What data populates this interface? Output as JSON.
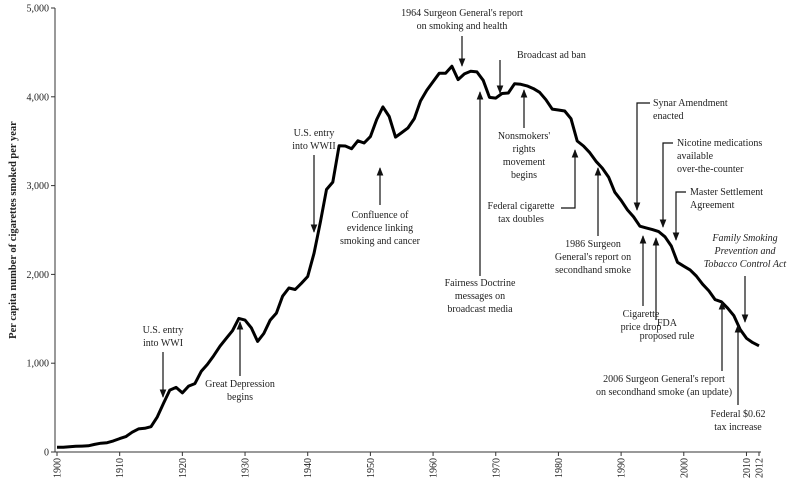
{
  "chart_data": {
    "type": "line",
    "y_label": "Per capita number of cigarettes smoked per year",
    "x": [
      1900,
      1901,
      1902,
      1903,
      1904,
      1905,
      1906,
      1907,
      1908,
      1909,
      1910,
      1911,
      1912,
      1913,
      1914,
      1915,
      1916,
      1917,
      1918,
      1919,
      1920,
      1921,
      1922,
      1923,
      1924,
      1925,
      1926,
      1927,
      1928,
      1929,
      1930,
      1931,
      1932,
      1933,
      1934,
      1935,
      1936,
      1937,
      1938,
      1939,
      1940,
      1941,
      1942,
      1943,
      1944,
      1945,
      1946,
      1947,
      1948,
      1949,
      1950,
      1951,
      1952,
      1953,
      1954,
      1955,
      1956,
      1957,
      1958,
      1959,
      1960,
      1961,
      1962,
      1963,
      1964,
      1965,
      1966,
      1967,
      1968,
      1969,
      1970,
      1971,
      1972,
      1973,
      1974,
      1975,
      1976,
      1977,
      1978,
      1979,
      1980,
      1981,
      1982,
      1983,
      1984,
      1985,
      1986,
      1987,
      1988,
      1989,
      1990,
      1991,
      1992,
      1993,
      1994,
      1995,
      1996,
      1997,
      1998,
      1999,
      2000,
      2001,
      2002,
      2003,
      2004,
      2005,
      2006,
      2007,
      2008,
      2009,
      2010,
      2011,
      2012
    ],
    "values": [
      54,
      53,
      60,
      64,
      66,
      70,
      86,
      99,
      105,
      125,
      151,
      173,
      223,
      260,
      267,
      285,
      395,
      551,
      697,
      727,
      665,
      742,
      770,
      908,
      986,
      1085,
      1191,
      1279,
      1366,
      1504,
      1485,
      1399,
      1245,
      1334,
      1483,
      1564,
      1754,
      1847,
      1830,
      1900,
      1976,
      2236,
      2585,
      2956,
      3039,
      3449,
      3446,
      3416,
      3505,
      3480,
      3552,
      3744,
      3886,
      3778,
      3546,
      3597,
      3650,
      3755,
      3953,
      4073,
      4171,
      4266,
      4266,
      4345,
      4194,
      4258,
      4287,
      4280,
      4186,
      3993,
      3985,
      4037,
      4043,
      4148,
      4141,
      4123,
      4092,
      4051,
      3967,
      3861,
      3851,
      3840,
      3753,
      3502,
      3446,
      3370,
      3274,
      3197,
      3096,
      2926,
      2834,
      2727,
      2647,
      2543,
      2524,
      2505,
      2482,
      2423,
      2320,
      2136,
      2092,
      2051,
      1982,
      1890,
      1814,
      1716,
      1691,
      1619,
      1535,
      1380,
      1280,
      1232,
      1196
    ],
    "color": "#000000",
    "xlim": [
      1900,
      2012
    ],
    "xticks": [
      1900,
      1910,
      1920,
      1930,
      1940,
      1950,
      1960,
      1970,
      1980,
      1990,
      2000,
      2010,
      2012
    ],
    "ylim": [
      0,
      5000
    ],
    "yticks": [
      0,
      {
        "value": 1000,
        "label": "1,000"
      },
      {
        "value": 2000,
        "label": "2,000"
      },
      {
        "value": 3000,
        "label": "3,000"
      },
      {
        "value": 4000,
        "label": "4,000"
      },
      {
        "value": 5000,
        "label": "5,000"
      }
    ],
    "annotations": [
      {
        "lines": [
          "U.S. entry",
          "into WWI"
        ]
      },
      {
        "lines": [
          "Great Depression",
          "begins"
        ]
      },
      {
        "lines": [
          "U.S. entry",
          "into WWII"
        ]
      },
      {
        "lines": [
          "Confluence of",
          "evidence linking",
          "smoking and cancer"
        ]
      },
      {
        "lines": [
          "1964 Surgeon General's report",
          "on smoking and health"
        ]
      },
      {
        "lines": [
          "Broadcast ad ban"
        ]
      },
      {
        "lines": [
          "Nonsmokers'",
          "rights",
          "movement",
          "begins"
        ]
      },
      {
        "lines": [
          "Fairness Doctrine",
          "messages on",
          "broadcast media"
        ]
      },
      {
        "lines": [
          "Federal cigarette",
          "tax doubles"
        ]
      },
      {
        "lines": [
          "1986 Surgeon",
          "General's report on",
          "secondhand smoke"
        ]
      },
      {
        "lines": [
          "Synar Amendment",
          "enacted"
        ]
      },
      {
        "lines": [
          "Nicotine medications",
          "available",
          "over-the-counter"
        ]
      },
      {
        "lines": [
          "Master Settlement",
          "Agreement"
        ]
      },
      {
        "lines": [
          "Family Smoking",
          "Prevention and",
          "Tobacco Control Act"
        ]
      },
      {
        "lines": [
          "Cigarette",
          "price drop"
        ]
      },
      {
        "lines": [
          "FDA",
          "proposed rule"
        ]
      },
      {
        "lines": [
          "2006 Surgeon General's report",
          "on secondhand smoke (an update)"
        ]
      },
      {
        "lines": [
          "Federal $0.62",
          "tax increase"
        ]
      }
    ]
  }
}
